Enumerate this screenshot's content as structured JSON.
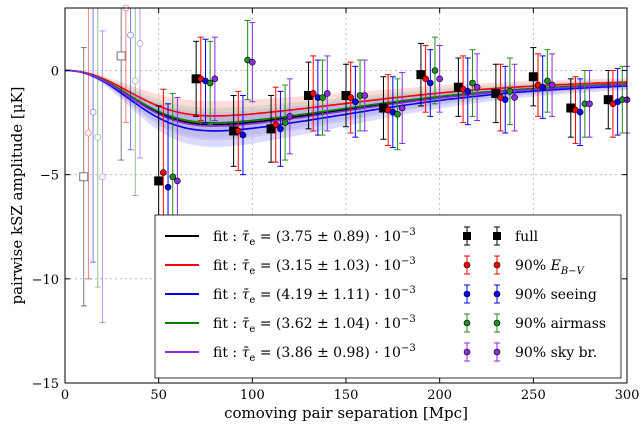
{
  "chart_data": {
    "type": "scatter",
    "xlabel": "comoving pair separation [Mpc]",
    "ylabel": "pairwise kSZ amplitude [μK]",
    "xlim": [
      0,
      300
    ],
    "ylim": [
      -15,
      3
    ],
    "xticks": [
      "0",
      "50",
      "100",
      "150",
      "200",
      "250",
      "300"
    ],
    "yticks": [
      "0",
      "−5",
      "−10",
      "−15"
    ],
    "grid": true,
    "legend_placement": "lower-center",
    "fits": [
      {
        "label": "fit : τ̄e = (3.75 ± 0.89) · 10−3",
        "color": "#000000",
        "tau": 3.75
      },
      {
        "label": "fit : τ̄e = (3.15 ± 1.03) · 10−3",
        "color": "#ff0000",
        "tau": 3.15
      },
      {
        "label": "fit : τ̄e = (4.19 ± 1.11) · 10−3",
        "color": "#0000ff",
        "tau": 4.19
      },
      {
        "label": "fit : τ̄e = (3.62 ± 1.04) · 10−3",
        "color": "#008000",
        "tau": 3.62
      },
      {
        "label": "fit : τ̄e = (3.86 ± 0.98) · 10−3",
        "color": "#8a2be2",
        "tau": 3.86
      }
    ],
    "series": [
      {
        "name": "full",
        "color": "#000000",
        "marker": "square",
        "offset": 0,
        "x": [
          10,
          30,
          50,
          70,
          90,
          110,
          130,
          150,
          170,
          190,
          210,
          230,
          250,
          270,
          290
        ],
        "y": [
          -5.1,
          0.7,
          -5.3,
          -0.4,
          -2.9,
          -2.8,
          -1.2,
          -1.2,
          -1.8,
          -0.2,
          -0.8,
          -1.1,
          -0.3,
          -1.8,
          -1.4
        ],
        "err": [
          6.2,
          5.0,
          3.6,
          1.8,
          1.7,
          1.6,
          1.6,
          1.5,
          1.5,
          1.5,
          1.4,
          1.4,
          1.4,
          1.4,
          1.4
        ],
        "open_until_x": 40
      },
      {
        "name": "90% E_{B−V}",
        "color": "#ff0000",
        "marker": "circle",
        "offset": 2.5,
        "x": [
          10,
          30,
          50,
          70,
          90,
          110,
          130,
          150,
          170,
          190,
          210,
          230,
          250,
          270,
          290
        ],
        "y": [
          -3.0,
          3.0,
          -4.9,
          -0.4,
          -2.9,
          -2.6,
          -1.1,
          -1.3,
          -1.9,
          -0.4,
          -0.9,
          -1.3,
          -0.7,
          -1.9,
          -1.6
        ],
        "err": [
          7.0,
          5.5,
          4.0,
          2.0,
          1.9,
          1.8,
          1.8,
          1.7,
          1.7,
          1.6,
          1.6,
          1.6,
          1.5,
          1.6,
          1.6
        ],
        "open_until_x": 40
      },
      {
        "name": "90% seeing",
        "color": "#0000ff",
        "marker": "circle",
        "offset": 5,
        "x": [
          10,
          30,
          50,
          70,
          90,
          110,
          130,
          150,
          170,
          190,
          210,
          230,
          250,
          270,
          290
        ],
        "y": [
          -2.0,
          1.7,
          -5.6,
          -0.5,
          -3.1,
          -2.8,
          -1.3,
          -1.5,
          -2.0,
          -0.6,
          -1.0,
          -1.4,
          -0.8,
          -2.0,
          -1.5
        ],
        "err": [
          7.2,
          5.5,
          4.0,
          2.0,
          1.9,
          1.8,
          1.8,
          1.7,
          1.7,
          1.6,
          1.6,
          1.6,
          1.5,
          1.6,
          1.6
        ],
        "open_until_x": 40
      },
      {
        "name": "90% airmass",
        "color": "#228b22",
        "marker": "circle",
        "offset": 7.5,
        "x": [
          10,
          30,
          50,
          70,
          90,
          110,
          130,
          150,
          170,
          190,
          210,
          230,
          250,
          270,
          290
        ],
        "y": [
          -3.2,
          -0.5,
          -5.1,
          -0.6,
          0.5,
          -2.5,
          -1.3,
          -1.2,
          -2.1,
          0.0,
          -0.6,
          -1.0,
          -0.5,
          -1.6,
          -1.4
        ],
        "err": [
          7.2,
          5.5,
          4.0,
          2.0,
          1.9,
          1.8,
          1.8,
          1.7,
          1.7,
          1.6,
          1.6,
          1.6,
          1.5,
          1.6,
          1.6
        ],
        "open_until_x": 40
      },
      {
        "name": "90% sky br.",
        "color": "#8a2be2",
        "marker": "circle",
        "offset": 10,
        "x": [
          10,
          30,
          50,
          70,
          90,
          110,
          130,
          150,
          170,
          190,
          210,
          230,
          250,
          270,
          290
        ],
        "y": [
          -5.1,
          1.3,
          -5.3,
          -0.4,
          0.4,
          -2.2,
          -1.1,
          -1.2,
          -1.8,
          -0.4,
          -0.8,
          -1.3,
          -0.7,
          -1.6,
          -1.4
        ],
        "err": [
          7.0,
          5.5,
          4.0,
          2.0,
          1.9,
          1.8,
          1.8,
          1.7,
          1.7,
          1.6,
          1.6,
          1.6,
          1.5,
          1.6,
          1.6
        ],
        "open_until_x": 40
      }
    ],
    "legend": {
      "fits": [
        {
          "prefix": "fit : ",
          "tau": "τ̄",
          "sub": "e",
          "value": " = (3.75 ± 0.89) · 10",
          "exp": "−3",
          "color": "#000000"
        },
        {
          "prefix": "fit : ",
          "tau": "τ̄",
          "sub": "e",
          "value": " = (3.15 ± 1.03) · 10",
          "exp": "−3",
          "color": "#ff0000"
        },
        {
          "prefix": "fit : ",
          "tau": "τ̄",
          "sub": "e",
          "value": " = (4.19 ± 1.11) · 10",
          "exp": "−3",
          "color": "#0000ff"
        },
        {
          "prefix": "fit : ",
          "tau": "τ̄",
          "sub": "e",
          "value": " = (3.62 ± 1.04) · 10",
          "exp": "−3",
          "color": "#008000"
        },
        {
          "prefix": "fit : ",
          "tau": "τ̄",
          "sub": "e",
          "value": " = (3.86 ± 0.98) · 10",
          "exp": "−3",
          "color": "#8a2be2"
        }
      ],
      "points": [
        {
          "text": "full",
          "color": "#000000",
          "marker": "square"
        },
        {
          "text": "90% ",
          "italic": "E",
          "sub": "B−V",
          "color": "#ff0000",
          "marker": "circle"
        },
        {
          "text": "90% seeing",
          "color": "#0000ff",
          "marker": "circle"
        },
        {
          "text": "90% airmass",
          "color": "#228b22",
          "marker": "circle"
        },
        {
          "text": "90% sky br.",
          "color": "#8a2be2",
          "marker": "circle"
        }
      ]
    }
  }
}
